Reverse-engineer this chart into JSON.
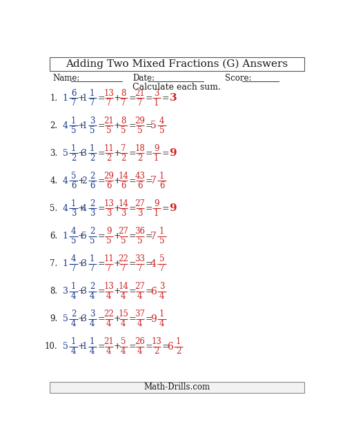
{
  "title": "Adding Two Mixed Fractions (G) Answers",
  "subtitle": "Calculate each sum.",
  "bg_color": "#ffffff",
  "text_color_black": "#1a1a1a",
  "text_color_blue": "#1a3a8a",
  "text_color_red": "#cc2222",
  "problems": [
    {
      "num": "1.",
      "w1": "1",
      "n1": "6",
      "d1": "7",
      "w2": "1",
      "n2": "1",
      "d2": "7",
      "rn1": "13",
      "rd1": "7",
      "rn2": "8",
      "rd2": "7",
      "sum_n": "21",
      "sum_d": "7",
      "simp_n": "3",
      "simp_d": "1",
      "final_w": "3",
      "final_n": "",
      "final_d": "",
      "simplified_to_whole": true
    },
    {
      "num": "2.",
      "w1": "4",
      "n1": "1",
      "d1": "5",
      "w2": "1",
      "n2": "3",
      "d2": "5",
      "rn1": "21",
      "rd1": "5",
      "rn2": "8",
      "rd2": "5",
      "sum_n": "29",
      "sum_d": "5",
      "simp_n": "",
      "simp_d": "",
      "final_w": "5",
      "final_n": "4",
      "final_d": "5",
      "simplified_to_whole": false
    },
    {
      "num": "3.",
      "w1": "5",
      "n1": "1",
      "d1": "2",
      "w2": "3",
      "n2": "1",
      "d2": "2",
      "rn1": "11",
      "rd1": "2",
      "rn2": "7",
      "rd2": "2",
      "sum_n": "18",
      "sum_d": "2",
      "simp_n": "9",
      "simp_d": "1",
      "final_w": "9",
      "final_n": "",
      "final_d": "",
      "simplified_to_whole": true
    },
    {
      "num": "4.",
      "w1": "4",
      "n1": "5",
      "d1": "6",
      "w2": "2",
      "n2": "2",
      "d2": "6",
      "rn1": "29",
      "rd1": "6",
      "rn2": "14",
      "rd2": "6",
      "sum_n": "43",
      "sum_d": "6",
      "simp_n": "",
      "simp_d": "",
      "final_w": "7",
      "final_n": "1",
      "final_d": "6",
      "simplified_to_whole": false
    },
    {
      "num": "5.",
      "w1": "4",
      "n1": "1",
      "d1": "3",
      "w2": "4",
      "n2": "2",
      "d2": "3",
      "rn1": "13",
      "rd1": "3",
      "rn2": "14",
      "rd2": "3",
      "sum_n": "27",
      "sum_d": "3",
      "simp_n": "9",
      "simp_d": "1",
      "final_w": "9",
      "final_n": "",
      "final_d": "",
      "simplified_to_whole": true
    },
    {
      "num": "6.",
      "w1": "1",
      "n1": "4",
      "d1": "5",
      "w2": "5",
      "n2": "2",
      "d2": "5",
      "rn1": "9",
      "rd1": "5",
      "rn2": "27",
      "rd2": "5",
      "sum_n": "36",
      "sum_d": "5",
      "simp_n": "",
      "simp_d": "",
      "final_w": "7",
      "final_n": "1",
      "final_d": "5",
      "simplified_to_whole": false
    },
    {
      "num": "7.",
      "w1": "1",
      "n1": "4",
      "d1": "7",
      "w2": "3",
      "n2": "1",
      "d2": "7",
      "rn1": "11",
      "rd1": "7",
      "rn2": "22",
      "rd2": "7",
      "sum_n": "33",
      "sum_d": "7",
      "simp_n": "",
      "simp_d": "",
      "final_w": "4",
      "final_n": "5",
      "final_d": "7",
      "simplified_to_whole": false
    },
    {
      "num": "8.",
      "w1": "3",
      "n1": "1",
      "d1": "4",
      "w2": "3",
      "n2": "2",
      "d2": "4",
      "rn1": "13",
      "rd1": "4",
      "rn2": "14",
      "rd2": "4",
      "sum_n": "27",
      "sum_d": "4",
      "simp_n": "",
      "simp_d": "",
      "final_w": "6",
      "final_n": "3",
      "final_d": "4",
      "simplified_to_whole": false
    },
    {
      "num": "9.",
      "w1": "5",
      "n1": "2",
      "d1": "4",
      "w2": "3",
      "n2": "3",
      "d2": "4",
      "rn1": "22",
      "rd1": "4",
      "rn2": "15",
      "rd2": "4",
      "sum_n": "37",
      "sum_d": "4",
      "simp_n": "",
      "simp_d": "",
      "final_w": "9",
      "final_n": "1",
      "final_d": "4",
      "simplified_to_whole": false
    },
    {
      "num": "10.",
      "w1": "5",
      "n1": "1",
      "d1": "4",
      "w2": "1",
      "n2": "1",
      "d2": "4",
      "rn1": "21",
      "rd1": "4",
      "rn2": "5",
      "rd2": "4",
      "sum_n": "26",
      "sum_d": "4",
      "simp_n": "13",
      "simp_d": "2",
      "final_w": "6",
      "final_n": "1",
      "final_d": "2",
      "simplified_to_whole": false
    }
  ]
}
